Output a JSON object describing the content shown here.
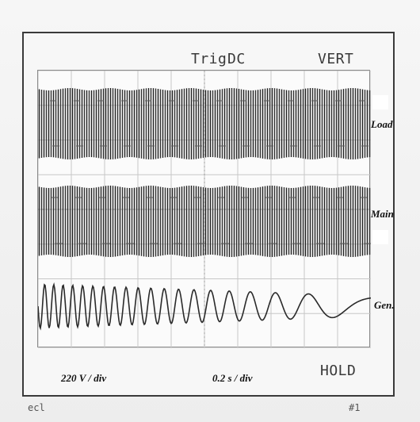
{
  "oscilloscope": {
    "top_text": {
      "trig": "Trig",
      "coupling": "DC",
      "mode": "VERT"
    },
    "channels": [
      {
        "name": "Load"
      },
      {
        "name": "Main"
      },
      {
        "name": "Gen."
      }
    ],
    "footer": {
      "voltage_scale": "220 V / div",
      "time_scale": "0.2 s / div",
      "status": "HOLD",
      "bottom_left": "ecl",
      "bottom_right": "#1"
    }
  }
}
